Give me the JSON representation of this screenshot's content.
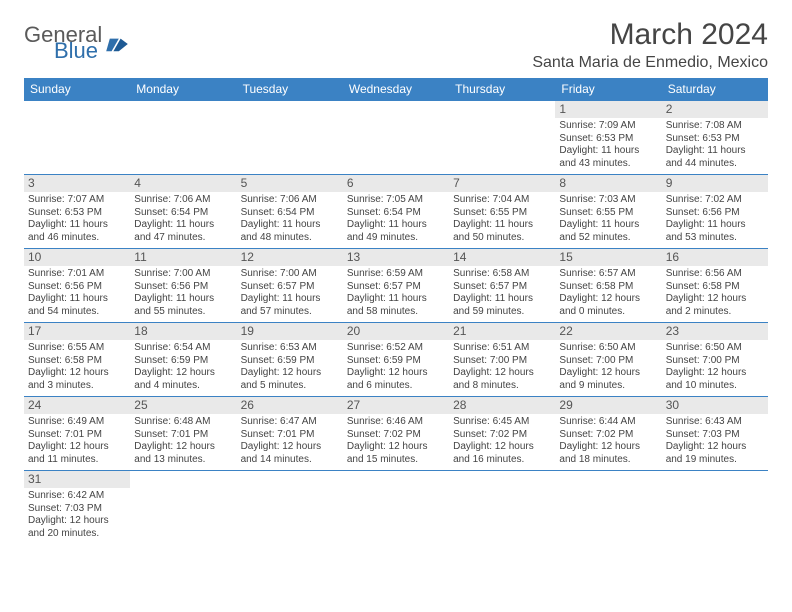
{
  "brand": {
    "line1": "General",
    "line2": "Blue"
  },
  "title": "March 2024",
  "location": "Santa Maria de Enmedio, Mexico",
  "colors": {
    "header_bg": "#3b82c4",
    "header_text": "#ffffff",
    "border": "#3b82c4",
    "daybar_bg": "#e9e9e9",
    "text": "#444444",
    "title_text": "#454545"
  },
  "day_headers": [
    "Sunday",
    "Monday",
    "Tuesday",
    "Wednesday",
    "Thursday",
    "Friday",
    "Saturday"
  ],
  "weeks": [
    [
      null,
      null,
      null,
      null,
      null,
      {
        "n": "1",
        "sr": "Sunrise: 7:09 AM",
        "ss": "Sunset: 6:53 PM",
        "d1": "Daylight: 11 hours",
        "d2": "and 43 minutes."
      },
      {
        "n": "2",
        "sr": "Sunrise: 7:08 AM",
        "ss": "Sunset: 6:53 PM",
        "d1": "Daylight: 11 hours",
        "d2": "and 44 minutes."
      }
    ],
    [
      {
        "n": "3",
        "sr": "Sunrise: 7:07 AM",
        "ss": "Sunset: 6:53 PM",
        "d1": "Daylight: 11 hours",
        "d2": "and 46 minutes."
      },
      {
        "n": "4",
        "sr": "Sunrise: 7:06 AM",
        "ss": "Sunset: 6:54 PM",
        "d1": "Daylight: 11 hours",
        "d2": "and 47 minutes."
      },
      {
        "n": "5",
        "sr": "Sunrise: 7:06 AM",
        "ss": "Sunset: 6:54 PM",
        "d1": "Daylight: 11 hours",
        "d2": "and 48 minutes."
      },
      {
        "n": "6",
        "sr": "Sunrise: 7:05 AM",
        "ss": "Sunset: 6:54 PM",
        "d1": "Daylight: 11 hours",
        "d2": "and 49 minutes."
      },
      {
        "n": "7",
        "sr": "Sunrise: 7:04 AM",
        "ss": "Sunset: 6:55 PM",
        "d1": "Daylight: 11 hours",
        "d2": "and 50 minutes."
      },
      {
        "n": "8",
        "sr": "Sunrise: 7:03 AM",
        "ss": "Sunset: 6:55 PM",
        "d1": "Daylight: 11 hours",
        "d2": "and 52 minutes."
      },
      {
        "n": "9",
        "sr": "Sunrise: 7:02 AM",
        "ss": "Sunset: 6:56 PM",
        "d1": "Daylight: 11 hours",
        "d2": "and 53 minutes."
      }
    ],
    [
      {
        "n": "10",
        "sr": "Sunrise: 7:01 AM",
        "ss": "Sunset: 6:56 PM",
        "d1": "Daylight: 11 hours",
        "d2": "and 54 minutes."
      },
      {
        "n": "11",
        "sr": "Sunrise: 7:00 AM",
        "ss": "Sunset: 6:56 PM",
        "d1": "Daylight: 11 hours",
        "d2": "and 55 minutes."
      },
      {
        "n": "12",
        "sr": "Sunrise: 7:00 AM",
        "ss": "Sunset: 6:57 PM",
        "d1": "Daylight: 11 hours",
        "d2": "and 57 minutes."
      },
      {
        "n": "13",
        "sr": "Sunrise: 6:59 AM",
        "ss": "Sunset: 6:57 PM",
        "d1": "Daylight: 11 hours",
        "d2": "and 58 minutes."
      },
      {
        "n": "14",
        "sr": "Sunrise: 6:58 AM",
        "ss": "Sunset: 6:57 PM",
        "d1": "Daylight: 11 hours",
        "d2": "and 59 minutes."
      },
      {
        "n": "15",
        "sr": "Sunrise: 6:57 AM",
        "ss": "Sunset: 6:58 PM",
        "d1": "Daylight: 12 hours",
        "d2": "and 0 minutes."
      },
      {
        "n": "16",
        "sr": "Sunrise: 6:56 AM",
        "ss": "Sunset: 6:58 PM",
        "d1": "Daylight: 12 hours",
        "d2": "and 2 minutes."
      }
    ],
    [
      {
        "n": "17",
        "sr": "Sunrise: 6:55 AM",
        "ss": "Sunset: 6:58 PM",
        "d1": "Daylight: 12 hours",
        "d2": "and 3 minutes."
      },
      {
        "n": "18",
        "sr": "Sunrise: 6:54 AM",
        "ss": "Sunset: 6:59 PM",
        "d1": "Daylight: 12 hours",
        "d2": "and 4 minutes."
      },
      {
        "n": "19",
        "sr": "Sunrise: 6:53 AM",
        "ss": "Sunset: 6:59 PM",
        "d1": "Daylight: 12 hours",
        "d2": "and 5 minutes."
      },
      {
        "n": "20",
        "sr": "Sunrise: 6:52 AM",
        "ss": "Sunset: 6:59 PM",
        "d1": "Daylight: 12 hours",
        "d2": "and 6 minutes."
      },
      {
        "n": "21",
        "sr": "Sunrise: 6:51 AM",
        "ss": "Sunset: 7:00 PM",
        "d1": "Daylight: 12 hours",
        "d2": "and 8 minutes."
      },
      {
        "n": "22",
        "sr": "Sunrise: 6:50 AM",
        "ss": "Sunset: 7:00 PM",
        "d1": "Daylight: 12 hours",
        "d2": "and 9 minutes."
      },
      {
        "n": "23",
        "sr": "Sunrise: 6:50 AM",
        "ss": "Sunset: 7:00 PM",
        "d1": "Daylight: 12 hours",
        "d2": "and 10 minutes."
      }
    ],
    [
      {
        "n": "24",
        "sr": "Sunrise: 6:49 AM",
        "ss": "Sunset: 7:01 PM",
        "d1": "Daylight: 12 hours",
        "d2": "and 11 minutes."
      },
      {
        "n": "25",
        "sr": "Sunrise: 6:48 AM",
        "ss": "Sunset: 7:01 PM",
        "d1": "Daylight: 12 hours",
        "d2": "and 13 minutes."
      },
      {
        "n": "26",
        "sr": "Sunrise: 6:47 AM",
        "ss": "Sunset: 7:01 PM",
        "d1": "Daylight: 12 hours",
        "d2": "and 14 minutes."
      },
      {
        "n": "27",
        "sr": "Sunrise: 6:46 AM",
        "ss": "Sunset: 7:02 PM",
        "d1": "Daylight: 12 hours",
        "d2": "and 15 minutes."
      },
      {
        "n": "28",
        "sr": "Sunrise: 6:45 AM",
        "ss": "Sunset: 7:02 PM",
        "d1": "Daylight: 12 hours",
        "d2": "and 16 minutes."
      },
      {
        "n": "29",
        "sr": "Sunrise: 6:44 AM",
        "ss": "Sunset: 7:02 PM",
        "d1": "Daylight: 12 hours",
        "d2": "and 18 minutes."
      },
      {
        "n": "30",
        "sr": "Sunrise: 6:43 AM",
        "ss": "Sunset: 7:03 PM",
        "d1": "Daylight: 12 hours",
        "d2": "and 19 minutes."
      }
    ],
    [
      {
        "n": "31",
        "sr": "Sunrise: 6:42 AM",
        "ss": "Sunset: 7:03 PM",
        "d1": "Daylight: 12 hours",
        "d2": "and 20 minutes."
      },
      null,
      null,
      null,
      null,
      null,
      null
    ]
  ]
}
